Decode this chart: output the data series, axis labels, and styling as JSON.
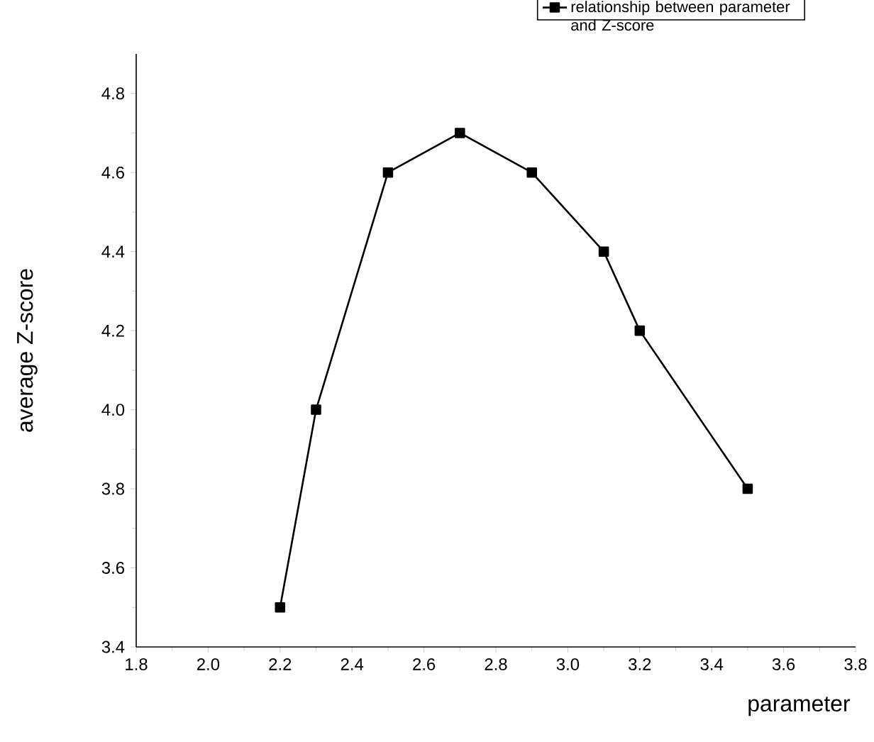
{
  "chart_data": {
    "type": "line",
    "xlabel": "parameter",
    "ylabel": "average Z-score",
    "x": [
      2.2,
      2.3,
      2.5,
      2.7,
      2.9,
      3.1,
      3.2,
      3.5
    ],
    "series": [
      {
        "name": "relationship between parameter and Z-score",
        "color": "#000000",
        "values": [
          3.5,
          4.0,
          4.6,
          4.7,
          4.6,
          4.4,
          4.2,
          3.8
        ]
      }
    ],
    "xlim": [
      1.8,
      3.8
    ],
    "ylim": [
      3.4,
      4.9
    ],
    "xticks": [
      1.8,
      {
        "value": 2.0,
        "label": "2.0"
      },
      2.2,
      2.4,
      2.6,
      2.8,
      {
        "value": 3.0,
        "label": "3.0"
      },
      3.2,
      3.4,
      3.6,
      3.8
    ],
    "yticks": [
      3.4,
      3.6,
      3.8,
      {
        "value": 4.0,
        "label": "4.0"
      },
      4.2,
      4.4,
      4.6,
      4.8
    ],
    "grid": false,
    "legend": "top right",
    "marker": "square",
    "line_style": "solid"
  }
}
